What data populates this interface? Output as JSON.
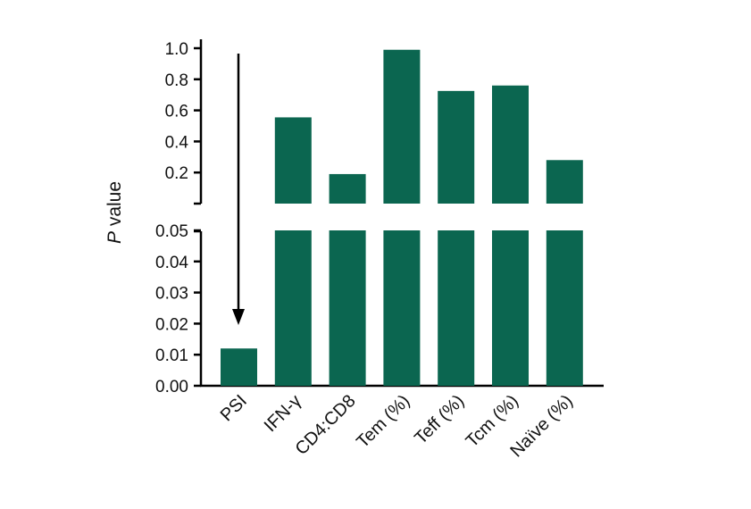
{
  "chart_data": {
    "type": "bar",
    "categories": [
      "PSI",
      "IFN-γ",
      "CD4:CD8",
      "Tem (%)",
      "Teff (%)",
      "Tcm (%)",
      "Naïve (%)"
    ],
    "values": [
      0.012,
      0.555,
      0.19,
      0.99,
      0.725,
      0.76,
      0.28
    ],
    "ylabel_italic": "P",
    "ylabel_rest": " value",
    "y_axis_break": true,
    "lower_segment": {
      "ylim": [
        0,
        0.05
      ],
      "ticks": [
        "0.00",
        "0.01",
        "0.02",
        "0.03",
        "0.04",
        "0.05"
      ]
    },
    "upper_segment": {
      "ylim": [
        0,
        1.0
      ],
      "ticks": [
        "0.2",
        "0.4",
        "0.6",
        "0.8",
        "1.0"
      ]
    },
    "bar_color": "#0b6650",
    "annotation": {
      "type": "arrow",
      "target_category": "PSI"
    },
    "grid": false,
    "legend": "none"
  }
}
